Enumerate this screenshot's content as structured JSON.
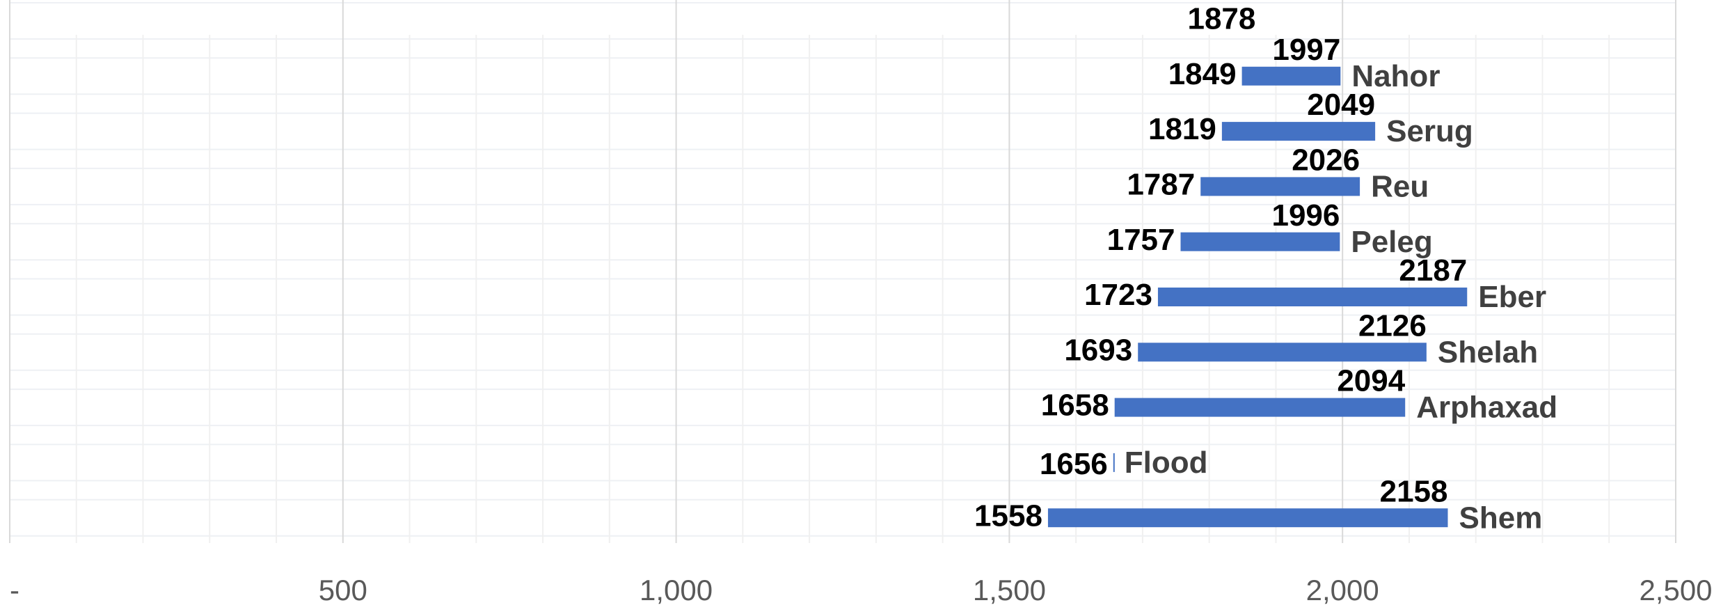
{
  "chart_data": {
    "type": "floating-bar",
    "categories": [
      null,
      "Nahor",
      "Serug",
      "Reu",
      "Peleg",
      "Eber",
      "Shelah",
      "Arphaxad",
      "Flood",
      "Shem"
    ],
    "series": [
      {
        "name": "start",
        "values": [
          1878,
          1849,
          1819,
          1787,
          1757,
          1723,
          1693,
          1658,
          1656,
          1558
        ]
      },
      {
        "name": "end",
        "values": [
          null,
          1997,
          2049,
          2026,
          1996,
          2187,
          2126,
          2094,
          1656,
          2158
        ]
      }
    ],
    "color": "#4472c4",
    "xlim": [
      0,
      2500
    ],
    "xticks": [
      {
        "value": 0,
        "label": "-"
      },
      500,
      {
        "value": 1000,
        "label": "1,000"
      },
      {
        "value": 1500,
        "label": "1,500"
      },
      {
        "value": 2000,
        "label": "2,000"
      },
      {
        "value": 2500,
        "label": "2,500"
      }
    ],
    "grid": true
  }
}
